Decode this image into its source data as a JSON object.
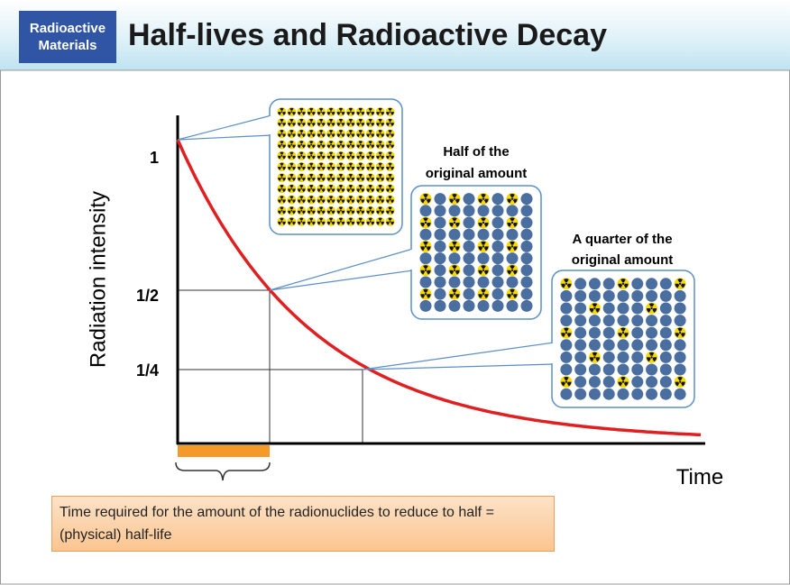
{
  "header": {
    "badge": [
      "Radioactive",
      "Materials"
    ],
    "title": "Half-lives and Radioactive Decay"
  },
  "axis": {
    "y_label": "Radiation intensity",
    "x_label": "Time",
    "levels": [
      "1",
      "1/2",
      "1/4"
    ]
  },
  "callouts": {
    "half": [
      "Half of the",
      "original amount"
    ],
    "quarter": [
      "A quarter of the",
      "original amount"
    ]
  },
  "note": "Time required for the amount of the radionuclides to reduce to half = (physical) half-life"
}
